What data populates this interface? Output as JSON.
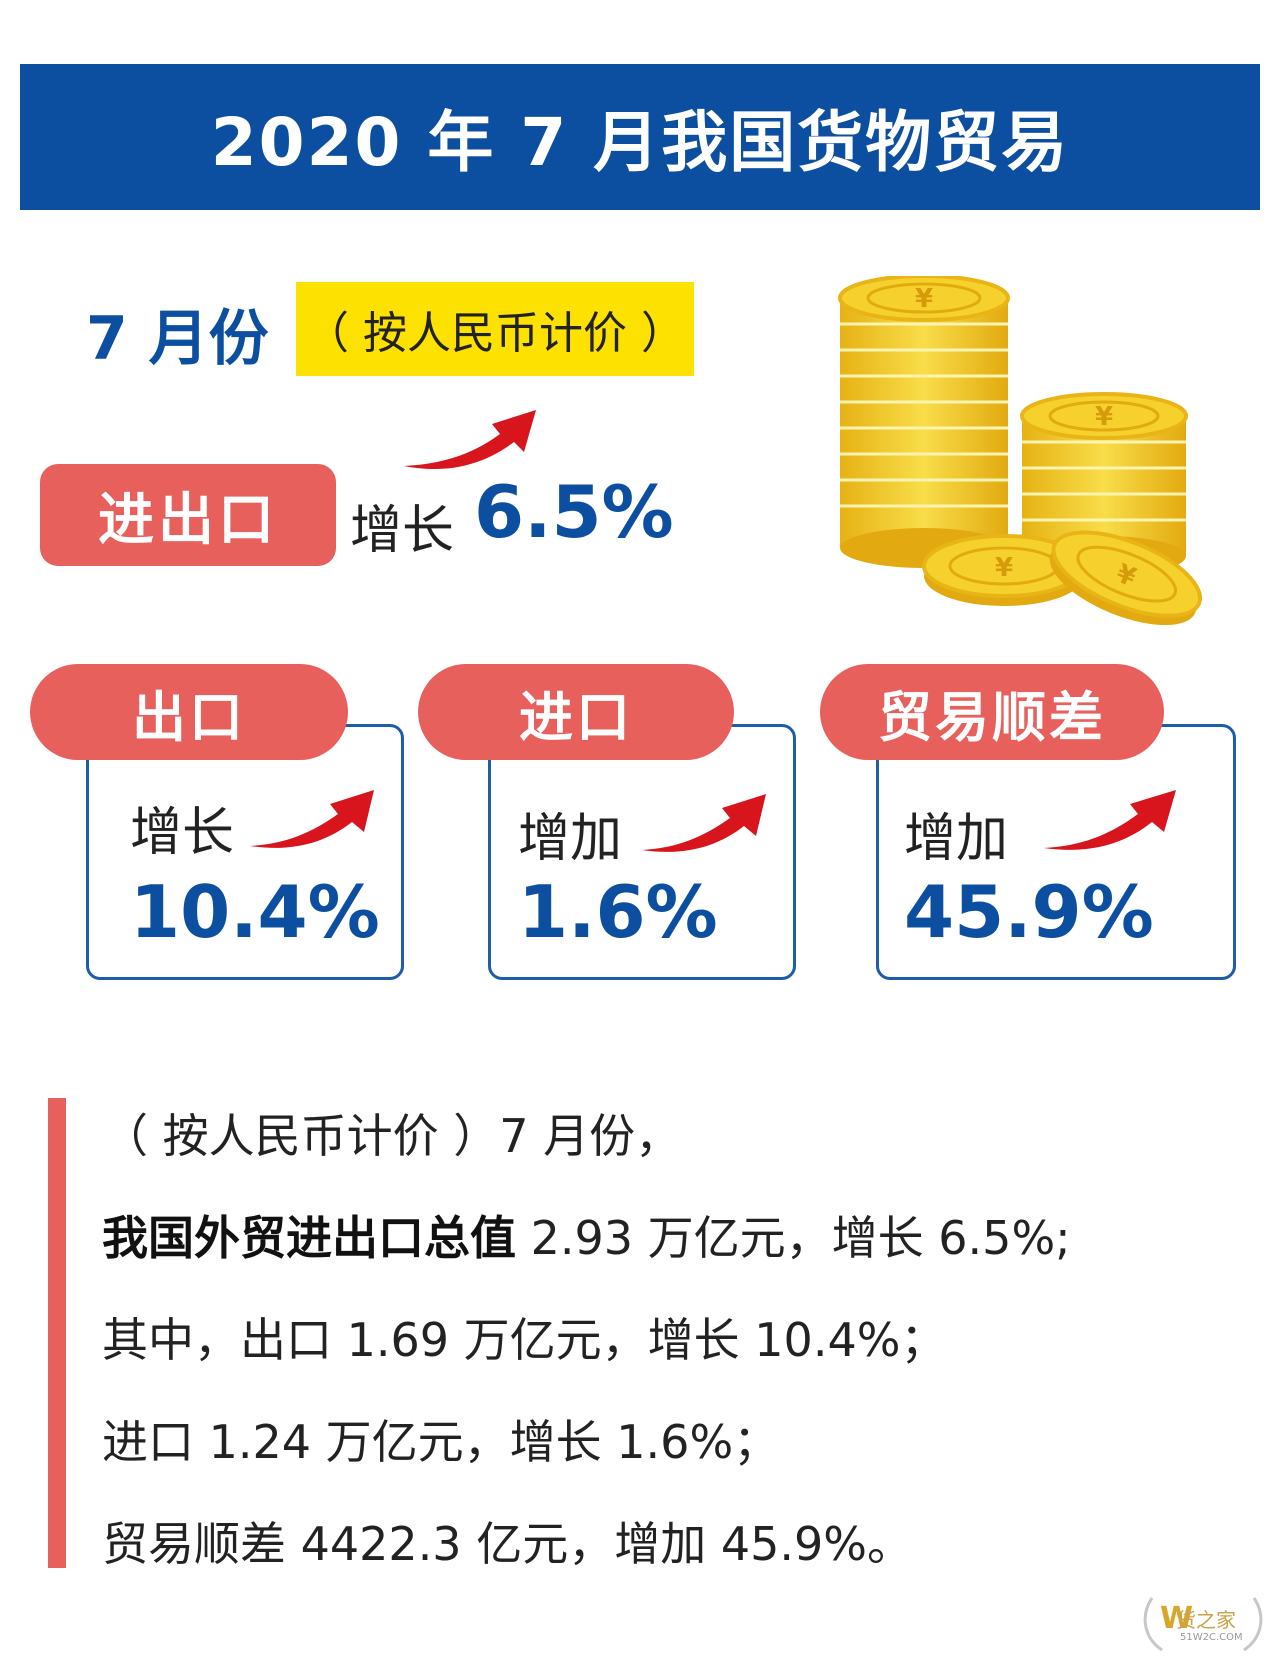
{
  "title": "2020 年 7 月我国货物贸易",
  "month_label": "7 月份",
  "currency_tag": "（ 按人民币计价 ）",
  "total": {
    "label": "进出口",
    "growth_text": "增长",
    "value": "6.5%"
  },
  "cards": [
    {
      "tab": "出口",
      "label": "增长",
      "value": "10.4%"
    },
    {
      "tab": "进口",
      "label": "增加",
      "value": "1.6%"
    },
    {
      "tab": "贸易顺差",
      "label": "增加",
      "value": "45.9%"
    }
  ],
  "paragraph": {
    "line1": "（ 按人民币计价 ）7 月份，",
    "line2_bold": "我国外贸进出口总值",
    "line2_rest": " 2.93 万亿元，增长 6.5%;",
    "line3": "其中，出口 1.69 万亿元，增长 10.4%；",
    "line4": "进口 1.24 万亿元，增长 1.6%；",
    "line5": "贸易顺差 4422.3 亿元，增加 45.9%。"
  },
  "watermark": {
    "text": "货之家",
    "sub": "51W2C.COM"
  },
  "colors": {
    "blue": "#0c4fa0",
    "red": "#e8605b",
    "yellow": "#fde100",
    "coin": "#f2c81e"
  },
  "icons": [
    "red-arrow-icon",
    "yuan-coin-stack-icon",
    "watermark-logo-icon"
  ]
}
